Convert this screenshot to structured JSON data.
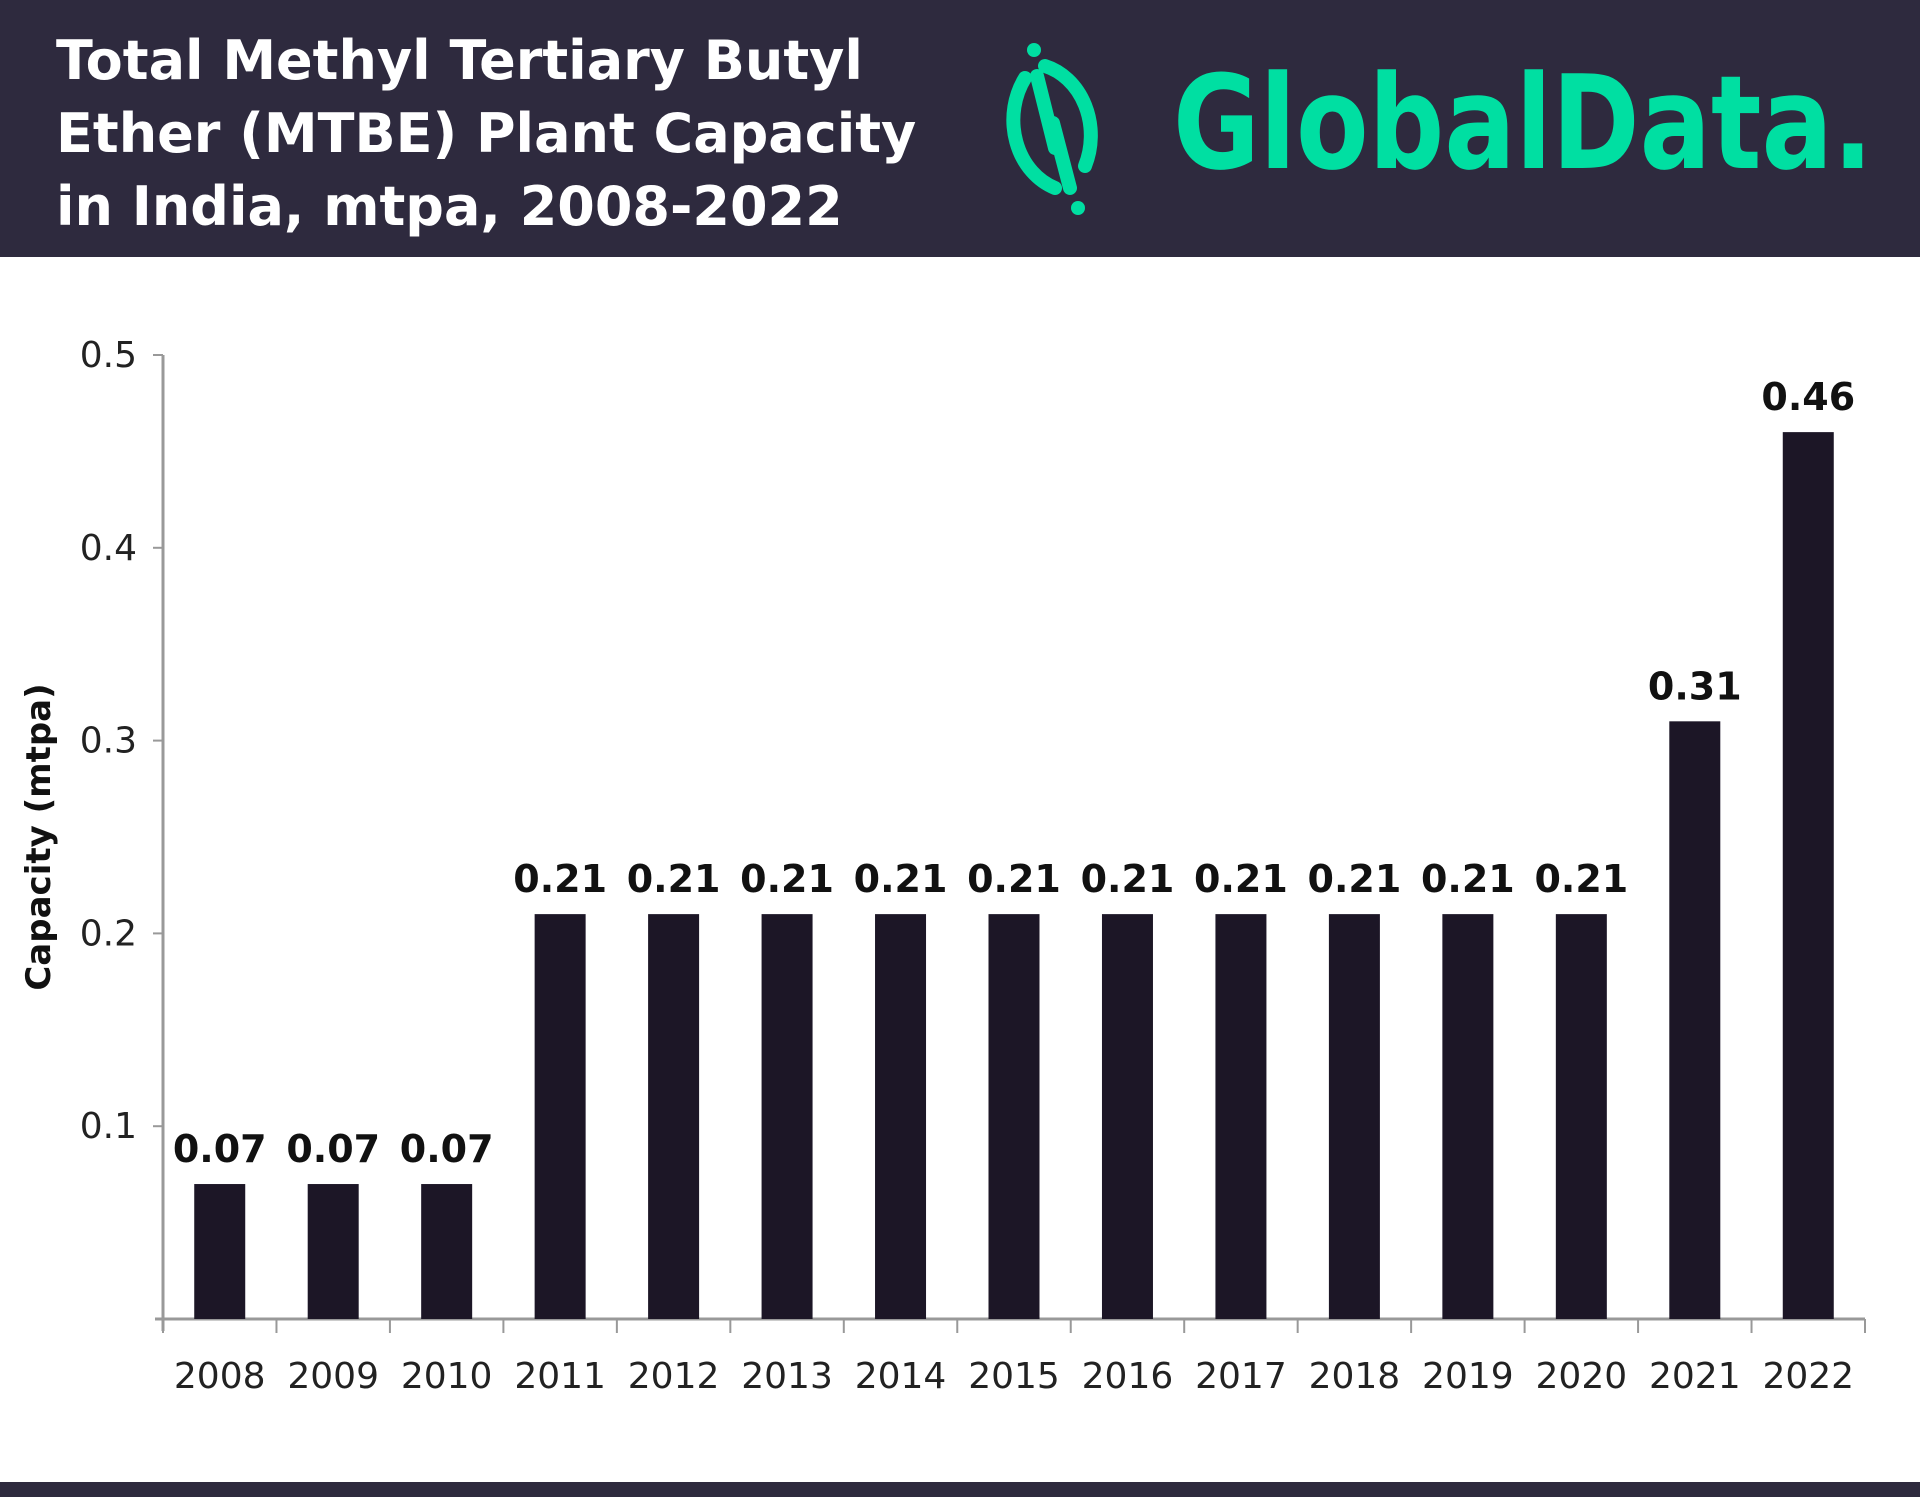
{
  "header": {
    "title": "Total Methyl Tertiary Butyl\nEther (MTBE) Plant Capacity\nin India, mtpa, 2008-2022",
    "logo_text": "GlobalData."
  },
  "colors": {
    "header_bg": "#2e2a3e",
    "brand_green": "#00dfa2",
    "bar": "#1c1626"
  },
  "chart_data": {
    "type": "bar",
    "title": "Total Methyl Tertiary Butyl Ether (MTBE) Plant Capacity in India, mtpa, 2008-2022",
    "xlabel": "",
    "ylabel": "Capacity (mtpa)",
    "ylim": [
      0,
      0.5
    ],
    "yticks": [
      "0.1",
      "0.2",
      "0.3",
      "0.4",
      "0.5"
    ],
    "grid": false,
    "categories": [
      "2008",
      "2009",
      "2010",
      "2011",
      "2012",
      "2013",
      "2014",
      "2015",
      "2016",
      "2017",
      "2018",
      "2019",
      "2020",
      "2021",
      "2022"
    ],
    "values": [
      0.07,
      0.07,
      0.07,
      0.21,
      0.21,
      0.21,
      0.21,
      0.21,
      0.21,
      0.21,
      0.21,
      0.21,
      0.21,
      0.31,
      0.46
    ],
    "data_labels": [
      "0.07",
      "0.07",
      "0.07",
      "0.21",
      "0.21",
      "0.21",
      "0.21",
      "0.21",
      "0.21",
      "0.21",
      "0.21",
      "0.21",
      "0.21",
      "0.31",
      "0.46"
    ]
  }
}
